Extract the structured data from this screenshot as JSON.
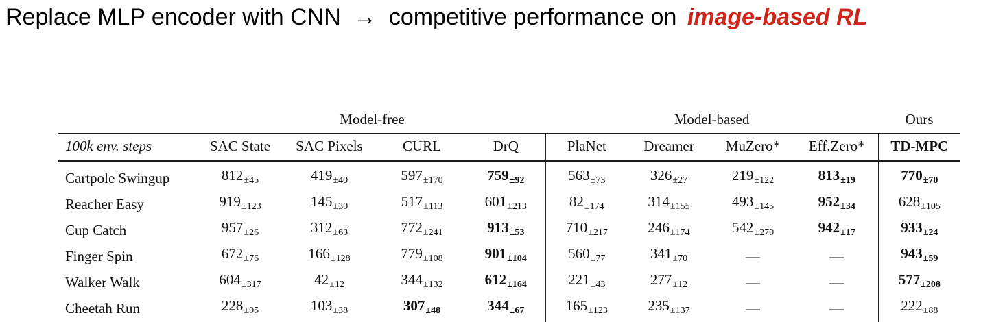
{
  "title": {
    "part1": "Replace MLP encoder with CNN",
    "arrow": "→",
    "part2": "competitive performance on",
    "highlight": "image-based RL",
    "highlight_color": "#cf261b"
  },
  "table": {
    "corner_label": "100k env. steps",
    "group_headers": [
      {
        "label": "Model-free",
        "span": 4
      },
      {
        "label": "Model-based",
        "span": 4
      },
      {
        "label": "Ours",
        "span": 1
      }
    ],
    "columns": [
      {
        "label": "SAC State",
        "bold": false,
        "separator_left": false
      },
      {
        "label": "SAC Pixels",
        "bold": false,
        "separator_left": false
      },
      {
        "label": "CURL",
        "bold": false,
        "separator_left": false
      },
      {
        "label": "DrQ",
        "bold": false,
        "separator_left": false
      },
      {
        "label": "PlaNet",
        "bold": false,
        "separator_left": true
      },
      {
        "label": "Dreamer",
        "bold": false,
        "separator_left": false
      },
      {
        "label": "MuZero*",
        "bold": false,
        "separator_left": false
      },
      {
        "label": "Eff.Zero*",
        "bold": false,
        "separator_left": false
      },
      {
        "label": "TD-MPC",
        "bold": true,
        "separator_left": true
      }
    ],
    "rows": [
      {
        "task": "Cartpole Swingup",
        "cells": [
          {
            "value": "812",
            "err": "45",
            "bold": false
          },
          {
            "value": "419",
            "err": "40",
            "bold": false
          },
          {
            "value": "597",
            "err": "170",
            "bold": false
          },
          {
            "value": "759",
            "err": "92",
            "bold": true
          },
          {
            "value": "563",
            "err": "73",
            "bold": false
          },
          {
            "value": "326",
            "err": "27",
            "bold": false
          },
          {
            "value": "219",
            "err": "122",
            "bold": false
          },
          {
            "value": "813",
            "err": "19",
            "bold": true
          },
          {
            "value": "770",
            "err": "70",
            "bold": true
          }
        ]
      },
      {
        "task": "Reacher Easy",
        "cells": [
          {
            "value": "919",
            "err": "123",
            "bold": false
          },
          {
            "value": "145",
            "err": "30",
            "bold": false
          },
          {
            "value": "517",
            "err": "113",
            "bold": false
          },
          {
            "value": "601",
            "err": "213",
            "bold": false
          },
          {
            "value": "82",
            "err": "174",
            "bold": false
          },
          {
            "value": "314",
            "err": "155",
            "bold": false
          },
          {
            "value": "493",
            "err": "145",
            "bold": false
          },
          {
            "value": "952",
            "err": "34",
            "bold": true
          },
          {
            "value": "628",
            "err": "105",
            "bold": false
          }
        ]
      },
      {
        "task": "Cup Catch",
        "cells": [
          {
            "value": "957",
            "err": "26",
            "bold": false
          },
          {
            "value": "312",
            "err": "63",
            "bold": false
          },
          {
            "value": "772",
            "err": "241",
            "bold": false
          },
          {
            "value": "913",
            "err": "53",
            "bold": true
          },
          {
            "value": "710",
            "err": "217",
            "bold": false
          },
          {
            "value": "246",
            "err": "174",
            "bold": false
          },
          {
            "value": "542",
            "err": "270",
            "bold": false
          },
          {
            "value": "942",
            "err": "17",
            "bold": true
          },
          {
            "value": "933",
            "err": "24",
            "bold": true
          }
        ]
      },
      {
        "task": "Finger Spin",
        "cells": [
          {
            "value": "672",
            "err": "76",
            "bold": false
          },
          {
            "value": "166",
            "err": "128",
            "bold": false
          },
          {
            "value": "779",
            "err": "108",
            "bold": false
          },
          {
            "value": "901",
            "err": "104",
            "bold": true
          },
          {
            "value": "560",
            "err": "77",
            "bold": false
          },
          {
            "value": "341",
            "err": "70",
            "bold": false
          },
          {
            "value": "—",
            "err": null,
            "bold": false
          },
          {
            "value": "—",
            "err": null,
            "bold": false
          },
          {
            "value": "943",
            "err": "59",
            "bold": true
          }
        ]
      },
      {
        "task": "Walker Walk",
        "cells": [
          {
            "value": "604",
            "err": "317",
            "bold": false
          },
          {
            "value": "42",
            "err": "12",
            "bold": false
          },
          {
            "value": "344",
            "err": "132",
            "bold": false
          },
          {
            "value": "612",
            "err": "164",
            "bold": true
          },
          {
            "value": "221",
            "err": "43",
            "bold": false
          },
          {
            "value": "277",
            "err": "12",
            "bold": false
          },
          {
            "value": "—",
            "err": null,
            "bold": false
          },
          {
            "value": "—",
            "err": null,
            "bold": false
          },
          {
            "value": "577",
            "err": "208",
            "bold": true
          }
        ]
      },
      {
        "task": "Cheetah Run",
        "cells": [
          {
            "value": "228",
            "err": "95",
            "bold": false
          },
          {
            "value": "103",
            "err": "38",
            "bold": false
          },
          {
            "value": "307",
            "err": "48",
            "bold": true
          },
          {
            "value": "344",
            "err": "67",
            "bold": true
          },
          {
            "value": "165",
            "err": "123",
            "bold": false
          },
          {
            "value": "235",
            "err": "137",
            "bold": false
          },
          {
            "value": "—",
            "err": null,
            "bold": false
          },
          {
            "value": "—",
            "err": null,
            "bold": false
          },
          {
            "value": "222",
            "err": "88",
            "bold": false
          }
        ]
      }
    ]
  }
}
